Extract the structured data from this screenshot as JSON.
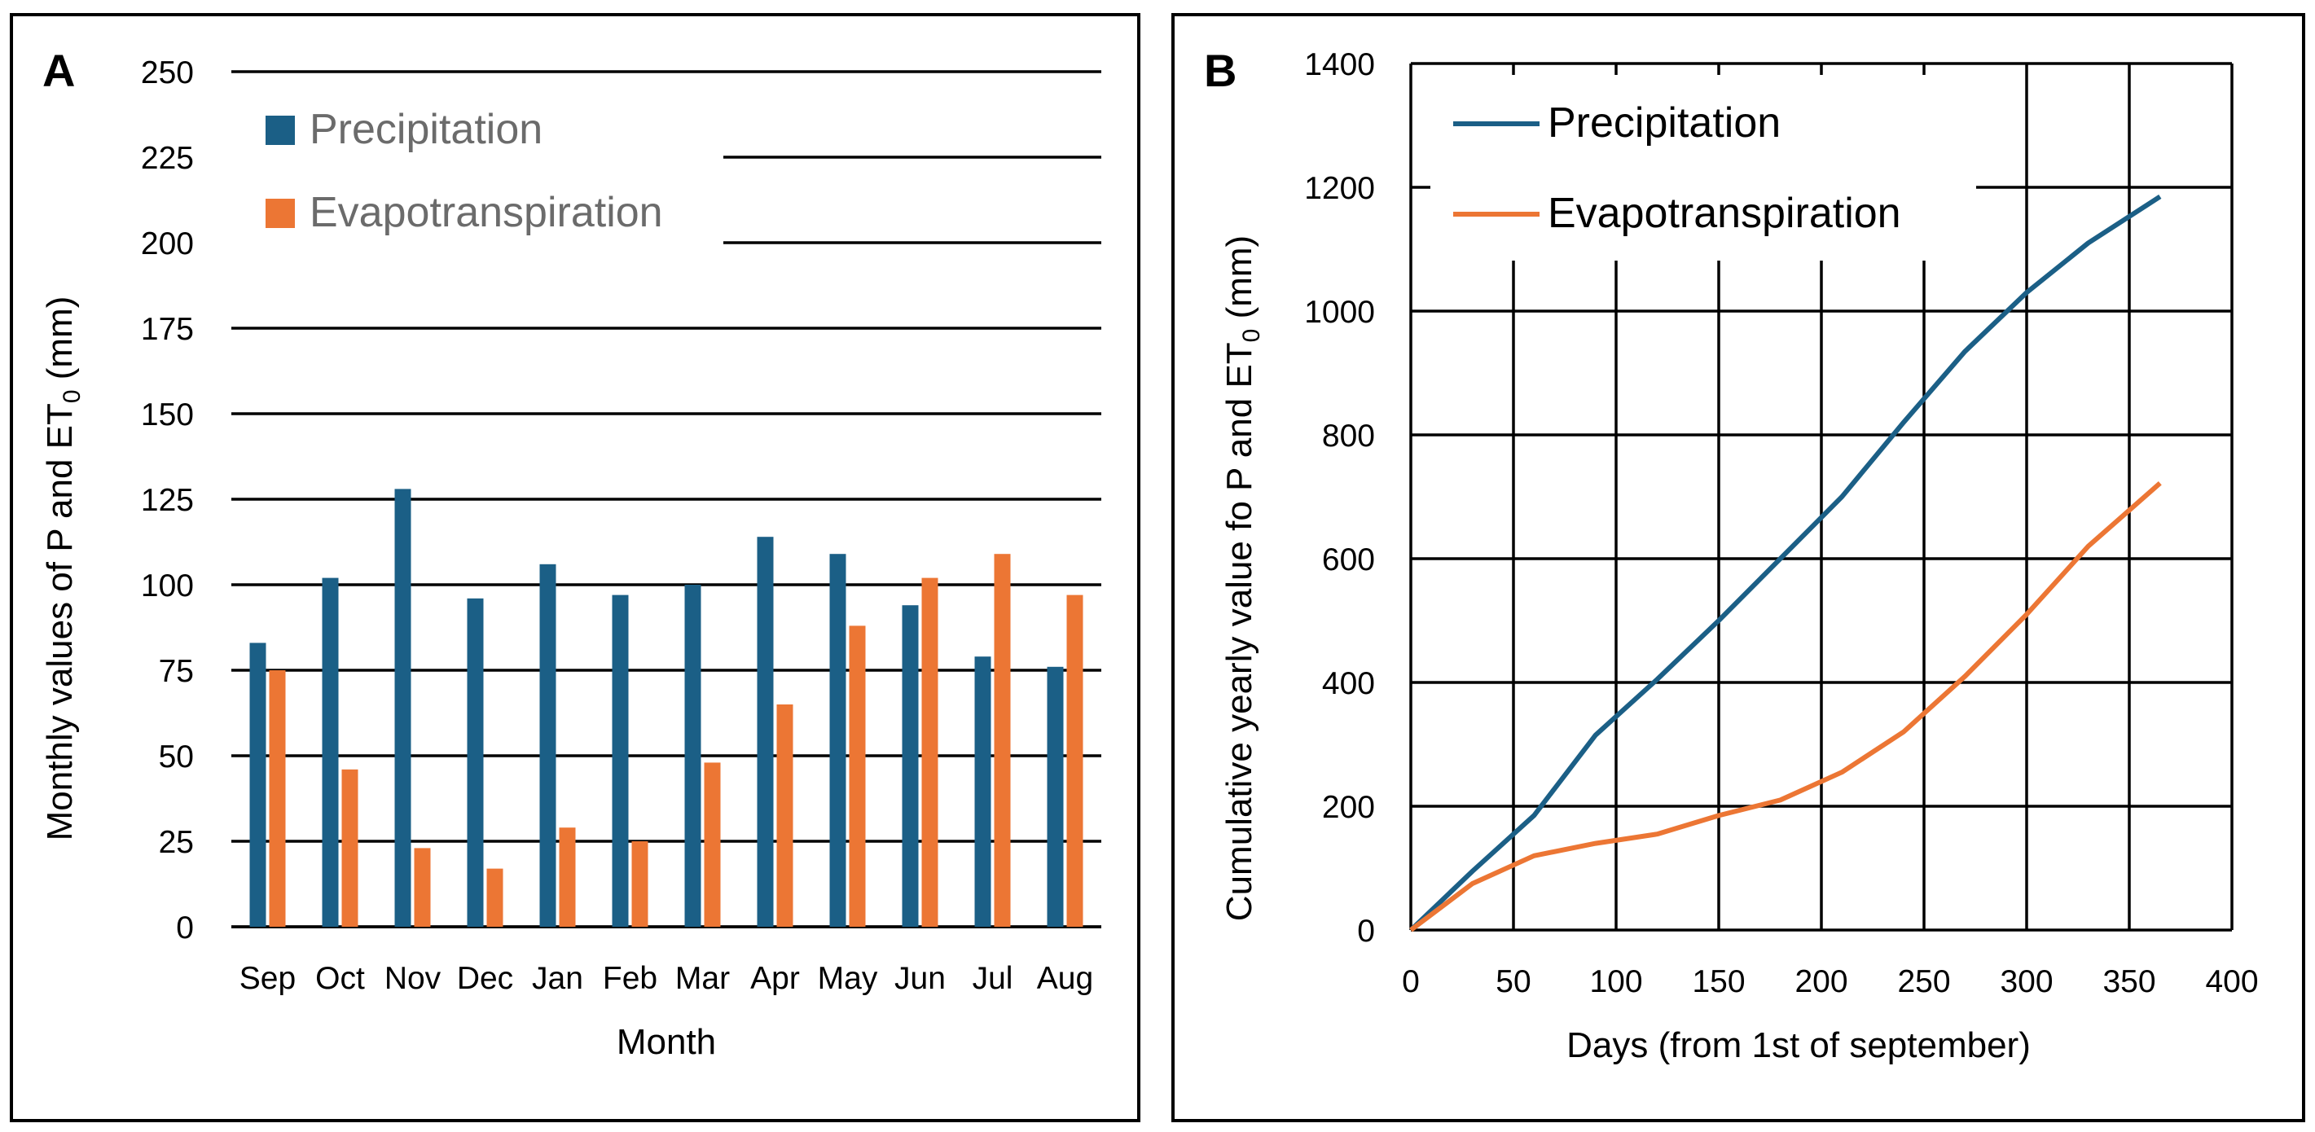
{
  "colors": {
    "precipitation": "#1b5f86",
    "evapotranspiration": "#ec7634"
  },
  "chart_data": [
    {
      "type": "bar",
      "panel_label": "A",
      "categories": [
        "Sep",
        "Oct",
        "Nov",
        "Dec",
        "Jan",
        "Feb",
        "Mar",
        "Apr",
        "May",
        "Jun",
        "Jul",
        "Aug"
      ],
      "series": [
        {
          "name": "Precipitation",
          "values": [
            83,
            102,
            128,
            96,
            106,
            97,
            100,
            114,
            109,
            94,
            79,
            76
          ]
        },
        {
          "name": "Evapotranspiration",
          "values": [
            75,
            46,
            23,
            17,
            29,
            25,
            48,
            65,
            88,
            102,
            109,
            97
          ]
        }
      ],
      "title": "",
      "xlabel": "Month",
      "ylabel": "Monthly values of P and ET",
      "ylabel_sub": "0",
      "ylabel_tail": " (mm)",
      "ylim": [
        0,
        250
      ],
      "yticks": [
        0,
        25,
        50,
        75,
        100,
        125,
        150,
        175,
        200,
        225,
        250
      ],
      "grid": true,
      "legend_position": "top-left"
    },
    {
      "type": "line",
      "panel_label": "B",
      "series": [
        {
          "name": "Precipitation",
          "x": [
            0,
            30,
            60,
            90,
            120,
            150,
            180,
            210,
            240,
            270,
            300,
            330,
            365
          ],
          "y": [
            0,
            95,
            185,
            315,
            405,
            500,
            600,
            700,
            820,
            935,
            1030,
            1110,
            1185
          ]
        },
        {
          "name": "Evapotranspiration",
          "x": [
            0,
            30,
            60,
            90,
            120,
            150,
            180,
            210,
            240,
            270,
            300,
            330,
            365
          ],
          "y": [
            0,
            75,
            120,
            140,
            155,
            185,
            210,
            255,
            320,
            410,
            510,
            620,
            722
          ]
        }
      ],
      "title": "",
      "xlabel": "Days (from 1st of september)",
      "ylabel": "Cumulative yearly value fo P and ET",
      "ylabel_sub": "0",
      "ylabel_tail": " (mm)",
      "xlim": [
        0,
        400
      ],
      "ylim": [
        0,
        1400
      ],
      "xticks": [
        0,
        50,
        100,
        150,
        200,
        250,
        300,
        350,
        400
      ],
      "yticks": [
        0,
        200,
        400,
        600,
        800,
        1000,
        1200,
        1400
      ],
      "grid": true,
      "legend_position": "top-left"
    }
  ]
}
